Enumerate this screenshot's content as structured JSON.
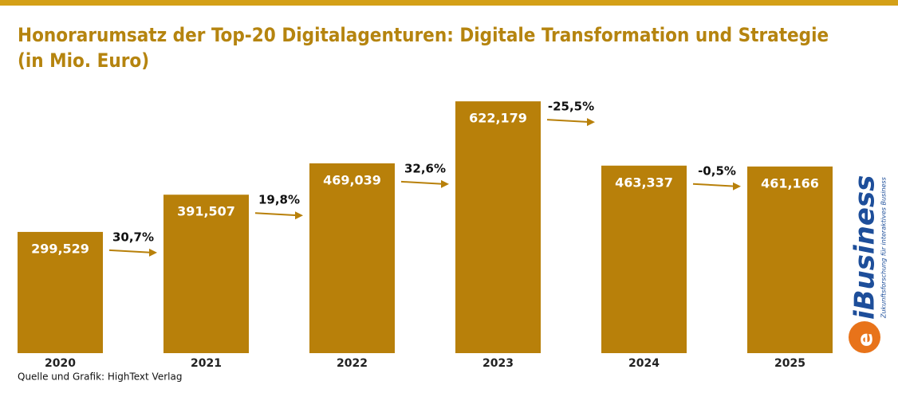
{
  "chart_data": {
    "type": "bar",
    "title": "Honorarumsatz der Top-20 Digitalagenturen: Digitale Transformation und Strategie",
    "subtitle": "(in Mio. Euro)",
    "categories": [
      "2020",
      "2021",
      "2022",
      "2023",
      "2024",
      "2025"
    ],
    "values": [
      299.529,
      391.507,
      469.039,
      622.179,
      463.337,
      461.166
    ],
    "value_labels": [
      "299,529",
      "391,507",
      "469,039",
      "622,179",
      "463,337",
      "461,166"
    ],
    "growth_labels": [
      null,
      "30,7%",
      "19,8%",
      "32,6%",
      "-25,5%",
      "-0,5%"
    ],
    "color": "#b8800a",
    "ylim": [
      0,
      650
    ],
    "source": "Quelle und Grafik: HighText Verlag",
    "logo": {
      "name": "iBusiness",
      "tagline": "Zukunftsforschung für interaktives Business"
    }
  }
}
